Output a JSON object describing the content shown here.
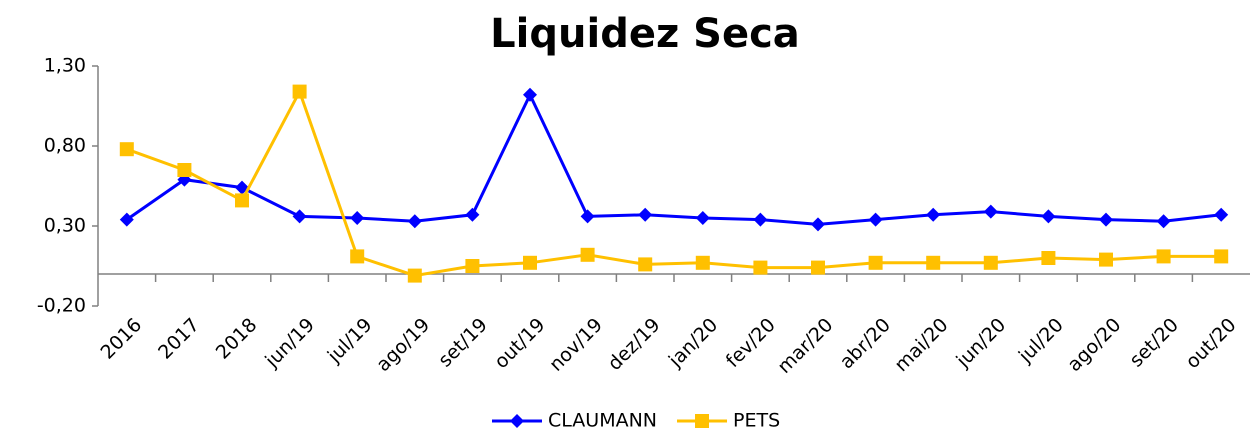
{
  "chart_data": {
    "type": "line",
    "title": "Liquidez Seca",
    "categories": [
      "2016",
      "2017",
      "2018",
      "jun/19",
      "jul/19",
      "ago/19",
      "set/19",
      "out/19",
      "nov/19",
      "dez/19",
      "jan/20",
      "fev/20",
      "mar/20",
      "abr/20",
      "mai/20",
      "jun/20",
      "jul/20",
      "ago/20",
      "set/20",
      "out/20"
    ],
    "series": [
      {
        "name": "CLAUMANN",
        "color": "#0000ff",
        "marker": "diamond",
        "values": [
          0.34,
          0.59,
          0.54,
          0.36,
          0.35,
          0.33,
          0.37,
          1.12,
          0.36,
          0.37,
          0.35,
          0.34,
          0.31,
          0.34,
          0.37,
          0.39,
          0.36,
          0.34,
          0.33,
          0.37
        ]
      },
      {
        "name": "PETS",
        "color": "#ffc000",
        "marker": "square",
        "values": [
          0.78,
          0.65,
          0.46,
          1.14,
          0.11,
          -0.01,
          0.05,
          0.07,
          0.12,
          0.06,
          0.07,
          0.04,
          0.04,
          0.07,
          0.07,
          0.07,
          0.1,
          0.09,
          0.11,
          0.11
        ]
      }
    ],
    "ylim": [
      -0.2,
      1.3
    ],
    "yticks": [
      {
        "value": -0.2,
        "label": "-0,20"
      },
      {
        "value": 0.3,
        "label": "0,30"
      },
      {
        "value": 0.8,
        "label": "0,80"
      },
      {
        "value": 1.3,
        "label": "1,30"
      }
    ],
    "grid": false,
    "legend": "bottom"
  }
}
